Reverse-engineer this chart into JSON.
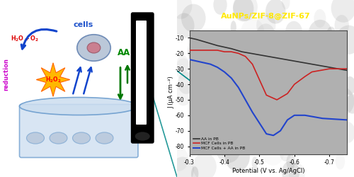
{
  "title": "AuNPs/ZIF-8@ZIF-67",
  "title_color": "#FFE800",
  "bg_color": "#808080",
  "plot_bg": "#B0B0B0",
  "xlabel": "Potential (V vs. Ag/AgCl)",
  "ylabel": "J (μA cm⁻²)",
  "xlim": [
    -0.3,
    -0.75
  ],
  "ylim": [
    -85,
    -5
  ],
  "xticks": [
    -0.3,
    -0.4,
    -0.5,
    -0.6,
    -0.7
  ],
  "yticks": [
    -10,
    -20,
    -30,
    -40,
    -50,
    -60,
    -70,
    -80
  ],
  "legend": [
    "AA in PB",
    "MCF Cells in PB",
    "MCF Cells + AA in PB"
  ],
  "line_colors": [
    "#333333",
    "#CC2222",
    "#2244CC"
  ],
  "gray_x": [
    -0.3,
    -0.32,
    -0.35,
    -0.38,
    -0.4,
    -0.42,
    -0.45,
    -0.5,
    -0.55,
    -0.6,
    -0.65,
    -0.7,
    -0.75
  ],
  "gray_y": [
    -10,
    -11,
    -13,
    -15,
    -16,
    -17,
    -19,
    -21,
    -23,
    -25,
    -27,
    -29,
    -31
  ],
  "red_x": [
    -0.3,
    -0.33,
    -0.36,
    -0.38,
    -0.4,
    -0.42,
    -0.44,
    -0.46,
    -0.48,
    -0.5,
    -0.52,
    -0.55,
    -0.58,
    -0.6,
    -0.63,
    -0.65,
    -0.7,
    -0.75
  ],
  "red_y": [
    -18,
    -18,
    -18,
    -18,
    -19,
    -19,
    -20,
    -22,
    -27,
    -37,
    -47,
    -50,
    -46,
    -40,
    -35,
    -32,
    -30,
    -30
  ],
  "blue_x": [
    -0.3,
    -0.32,
    -0.34,
    -0.36,
    -0.38,
    -0.4,
    -0.42,
    -0.44,
    -0.46,
    -0.48,
    -0.5,
    -0.52,
    -0.54,
    -0.56,
    -0.58,
    -0.6,
    -0.63,
    -0.68,
    -0.75
  ],
  "blue_y": [
    -24,
    -25,
    -26,
    -27,
    -29,
    -32,
    -36,
    -42,
    -50,
    -58,
    -65,
    -72,
    -73,
    -70,
    -63,
    -60,
    -60,
    -62,
    -63
  ],
  "dish_color": "#CCDDEF",
  "dish_edge": "#6699CC",
  "well_color": "#AABBD0",
  "star_outer": "#FFB800",
  "star_inner": "#FF6600",
  "cell_color": "#AABBD0",
  "cell_edge": "#5577AA",
  "nucleus_color": "#CC7788",
  "nucleus_edge": "#995566",
  "arrow_blue": "#1144CC",
  "arrow_green": "#007700",
  "text_red": "#DD0000",
  "text_blue": "#2255CC",
  "text_magenta": "#CC00CC",
  "text_green": "#008800"
}
